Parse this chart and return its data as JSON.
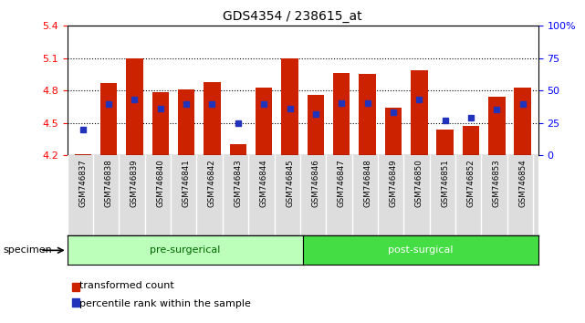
{
  "title": "GDS4354 / 238615_at",
  "samples": [
    "GSM746837",
    "GSM746838",
    "GSM746839",
    "GSM746840",
    "GSM746841",
    "GSM746842",
    "GSM746843",
    "GSM746844",
    "GSM746845",
    "GSM746846",
    "GSM746847",
    "GSM746848",
    "GSM746849",
    "GSM746850",
    "GSM746851",
    "GSM746852",
    "GSM746853",
    "GSM746854"
  ],
  "bar_values": [
    4.21,
    4.87,
    5.1,
    4.78,
    4.81,
    4.88,
    4.3,
    4.83,
    5.1,
    4.76,
    4.96,
    4.95,
    4.64,
    4.99,
    4.44,
    4.47,
    4.74,
    4.83
  ],
  "blue_values": [
    4.44,
    4.67,
    4.72,
    4.63,
    4.67,
    4.67,
    4.5,
    4.67,
    4.63,
    4.58,
    4.68,
    4.68,
    4.6,
    4.72,
    4.52,
    4.55,
    4.62,
    4.67
  ],
  "pre_surgical_count": 9,
  "post_surgical_count": 9,
  "ymin": 4.2,
  "ymax": 5.4,
  "bar_color": "#CC2200",
  "blue_color": "#2233BB",
  "pre_surgical_color": "#BBFFBB",
  "post_surgical_color": "#44DD44",
  "yticks": [
    4.2,
    4.5,
    4.8,
    5.1,
    5.4
  ],
  "right_yticks": [
    0,
    25,
    50,
    75,
    100
  ],
  "right_yticklabels": [
    "0",
    "25",
    "50",
    "75",
    "100%"
  ],
  "legend_items": [
    "transformed count",
    "percentile rank within the sample"
  ],
  "specimen_label": "specimen",
  "xtick_bg": "#DDDDDD",
  "pre_label": "pre-surgerical",
  "post_label": "post-surgical"
}
